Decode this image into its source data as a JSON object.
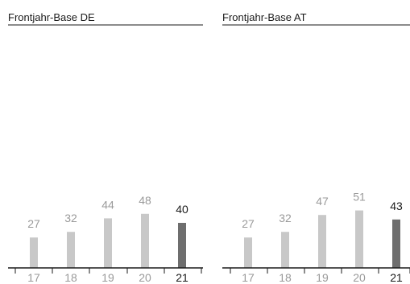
{
  "chart_data": [
    {
      "type": "bar",
      "title": "Frontjahr-Base DE",
      "categories": [
        "17",
        "18",
        "19",
        "20",
        "21"
      ],
      "values": [
        27,
        32,
        44,
        48,
        40
      ],
      "value_labels": [
        "27",
        "32",
        "44",
        "48",
        "40"
      ],
      "highlight_index": 4,
      "ylim": [
        0,
        100
      ],
      "grid": false,
      "legend": "none"
    },
    {
      "type": "bar",
      "title": "Frontjahr-Base AT",
      "categories": [
        "17",
        "18",
        "19",
        "20",
        "21"
      ],
      "values": [
        27,
        32,
        47,
        51,
        43
      ],
      "value_labels": [
        "27",
        "32",
        "47",
        "51",
        "43"
      ],
      "highlight_index": 4,
      "ylim": [
        0,
        100
      ],
      "grid": false,
      "legend": "none"
    }
  ],
  "colors": {
    "bar": "#c8c8c8",
    "bar_highlight": "#6e6e6e",
    "label": "#9a9a9a",
    "label_highlight": "#1a1a1a",
    "axis": "#1a1a1a",
    "title_rule": "#1a1a1a"
  }
}
